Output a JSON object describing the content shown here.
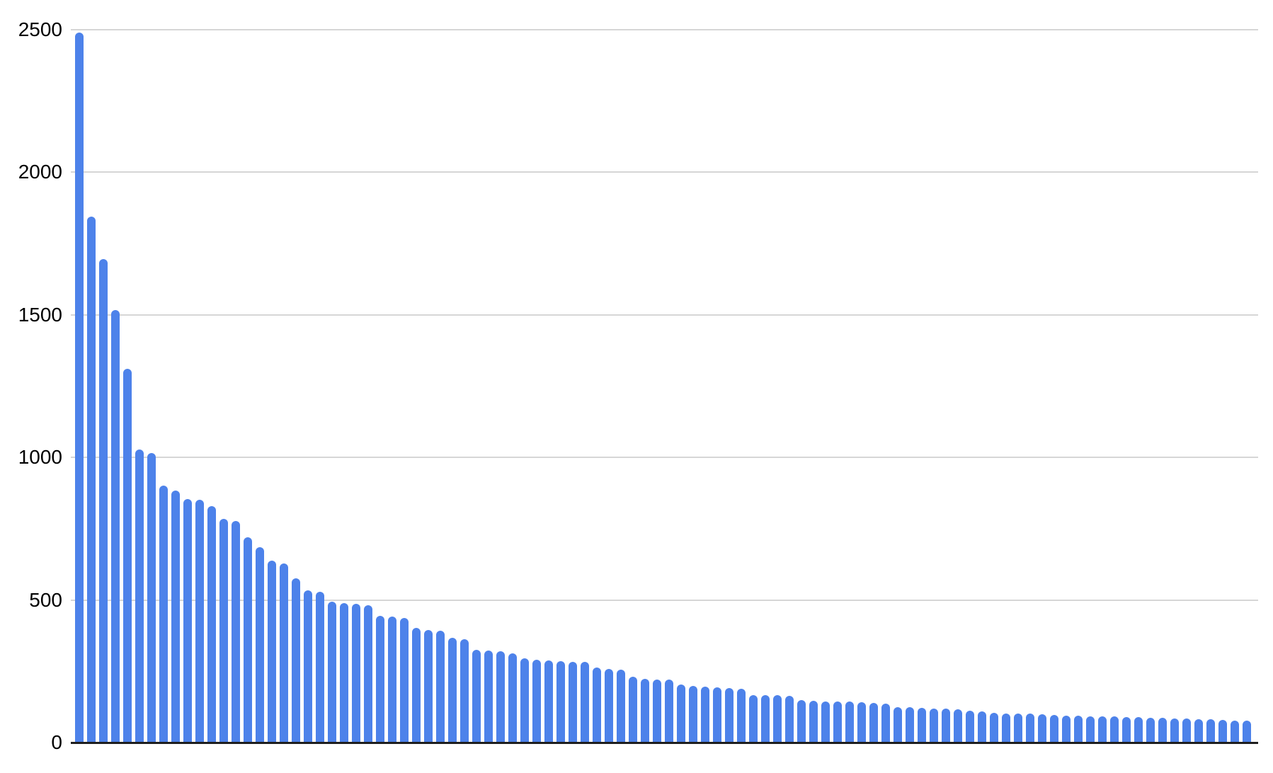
{
  "chart_data": {
    "type": "bar",
    "title": "",
    "xlabel": "",
    "ylabel": "",
    "categories": [],
    "x_axis_labels_visible": false,
    "values": [
      2490,
      1844,
      1695,
      1516,
      1310,
      1028,
      1015,
      900,
      884,
      855,
      851,
      829,
      785,
      777,
      721,
      685,
      637,
      629,
      577,
      534,
      529,
      494,
      490,
      486,
      481,
      444,
      442,
      438,
      401,
      395,
      393,
      368,
      362,
      324,
      322,
      320,
      312,
      295,
      291,
      289,
      286,
      284,
      283,
      264,
      258,
      256,
      230,
      224,
      222,
      220,
      203,
      198,
      195,
      193,
      190,
      188,
      167,
      166,
      166,
      165,
      150,
      146,
      145,
      144,
      143,
      142,
      139,
      137,
      124,
      123,
      121,
      120,
      118,
      117,
      111,
      110,
      104,
      103,
      103,
      101,
      99,
      96,
      95,
      94,
      93,
      92,
      91,
      90,
      89,
      87,
      86,
      85,
      84,
      83,
      81,
      80,
      78,
      77
    ],
    "ylim": [
      0,
      2500
    ],
    "yticks": [
      0,
      500,
      1000,
      1500,
      2000,
      2500
    ],
    "ytick_labels": [
      "0",
      "500",
      "1000",
      "1500",
      "2000",
      "2500"
    ],
    "grid": true,
    "legend_position": "none",
    "series_count": 1
  },
  "colors": {
    "bar": "#4d82ea",
    "gridline": "#d6d6d6",
    "axis_line": "#1f1f1f",
    "tick_label": "#000000",
    "background": "#ffffff"
  }
}
